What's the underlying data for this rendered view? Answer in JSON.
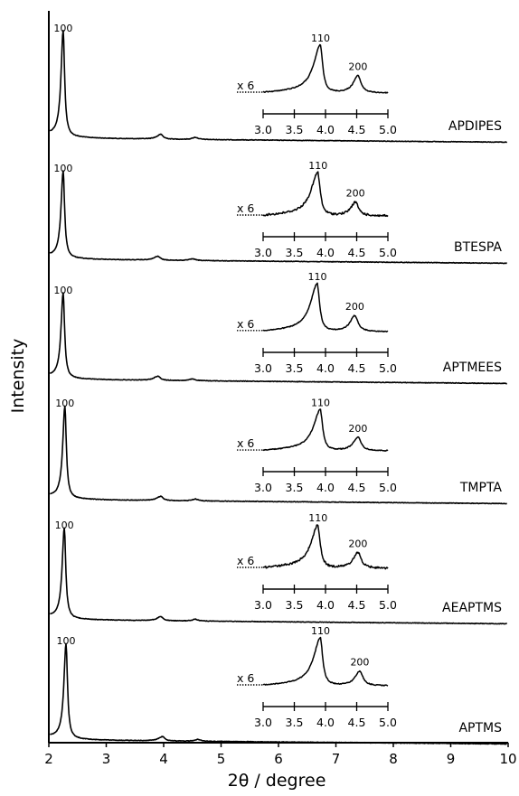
{
  "chart_data": {
    "type": "line",
    "ylabel": "Intensity",
    "xlabel": "2θ / degree",
    "xlim": [
      2,
      10
    ],
    "x_ticks": [
      2,
      3,
      4,
      5,
      6,
      7,
      8,
      9,
      10
    ],
    "y_ticks": [],
    "grid": false,
    "legend": "none",
    "line_color": "#000000",
    "series": [
      {
        "name": "APDIPES",
        "peaks": [
          {
            "hkl": "100",
            "x": 2.25,
            "rel_height": 1.0
          },
          {
            "hkl": "110",
            "x": 3.95,
            "rel_height": 0.045
          },
          {
            "hkl": "200",
            "x": 4.55,
            "rel_height": 0.02
          }
        ],
        "inset": {
          "magnification": "x 6",
          "xlim": [
            3.0,
            5.0
          ],
          "x_ticks": [
            "3.0",
            "3.5",
            "4.0",
            "4.5",
            "5.0"
          ],
          "peak_110": 3.92,
          "peak_200": 4.52,
          "h110": 1.0,
          "h200": 0.38
        }
      },
      {
        "name": "BTESPA",
        "peaks": [
          {
            "hkl": "100",
            "x": 2.25,
            "rel_height": 1.0
          },
          {
            "hkl": "110",
            "x": 3.9,
            "rel_height": 0.045
          },
          {
            "hkl": "200",
            "x": 4.5,
            "rel_height": 0.02
          }
        ],
        "inset": {
          "magnification": "x 6",
          "xlim": [
            3.0,
            5.0
          ],
          "x_ticks": [
            "3.0",
            "3.5",
            "4.0",
            "4.5",
            "5.0"
          ],
          "peak_110": 3.88,
          "peak_200": 4.48,
          "h110": 0.9,
          "h200": 0.3
        }
      },
      {
        "name": "APTMEES",
        "peaks": [
          {
            "hkl": "100",
            "x": 2.25,
            "rel_height": 1.0
          },
          {
            "hkl": "110",
            "x": 3.9,
            "rel_height": 0.05
          },
          {
            "hkl": "200",
            "x": 4.5,
            "rel_height": 0.02
          }
        ],
        "inset": {
          "magnification": "x 6",
          "xlim": [
            3.0,
            5.0
          ],
          "x_ticks": [
            "3.0",
            "3.5",
            "4.0",
            "4.5",
            "5.0"
          ],
          "peak_110": 3.87,
          "peak_200": 4.47,
          "h110": 1.0,
          "h200": 0.35
        }
      },
      {
        "name": "TMPTA",
        "peaks": [
          {
            "hkl": "100",
            "x": 2.28,
            "rel_height": 1.0
          },
          {
            "hkl": "110",
            "x": 3.95,
            "rel_height": 0.045
          },
          {
            "hkl": "200",
            "x": 4.55,
            "rel_height": 0.02
          }
        ],
        "inset": {
          "magnification": "x 6",
          "xlim": [
            3.0,
            5.0
          ],
          "x_ticks": [
            "3.0",
            "3.5",
            "4.0",
            "4.5",
            "5.0"
          ],
          "peak_110": 3.92,
          "peak_200": 4.52,
          "h110": 0.85,
          "h200": 0.3
        }
      },
      {
        "name": "AEAPTMS",
        "peaks": [
          {
            "hkl": "100",
            "x": 2.27,
            "rel_height": 1.0
          },
          {
            "hkl": "110",
            "x": 3.95,
            "rel_height": 0.045
          },
          {
            "hkl": "200",
            "x": 4.55,
            "rel_height": 0.02
          }
        ],
        "inset": {
          "magnification": "x 6",
          "xlim": [
            3.0,
            5.0
          ],
          "x_ticks": [
            "3.0",
            "3.5",
            "4.0",
            "4.5",
            "5.0"
          ],
          "peak_110": 3.88,
          "peak_200": 4.52,
          "h110": 0.9,
          "h200": 0.35
        }
      },
      {
        "name": "APTMS",
        "peaks": [
          {
            "hkl": "100",
            "x": 2.3,
            "rel_height": 1.0
          },
          {
            "hkl": "110",
            "x": 3.98,
            "rel_height": 0.045
          },
          {
            "hkl": "200",
            "x": 4.6,
            "rel_height": 0.02
          }
        ],
        "inset": {
          "magnification": "x 6",
          "xlim": [
            3.0,
            5.0
          ],
          "x_ticks": [
            "3.0",
            "3.5",
            "4.0",
            "4.5",
            "5.0"
          ],
          "peak_110": 3.92,
          "peak_200": 4.55,
          "h110": 1.0,
          "h200": 0.32
        }
      }
    ]
  }
}
